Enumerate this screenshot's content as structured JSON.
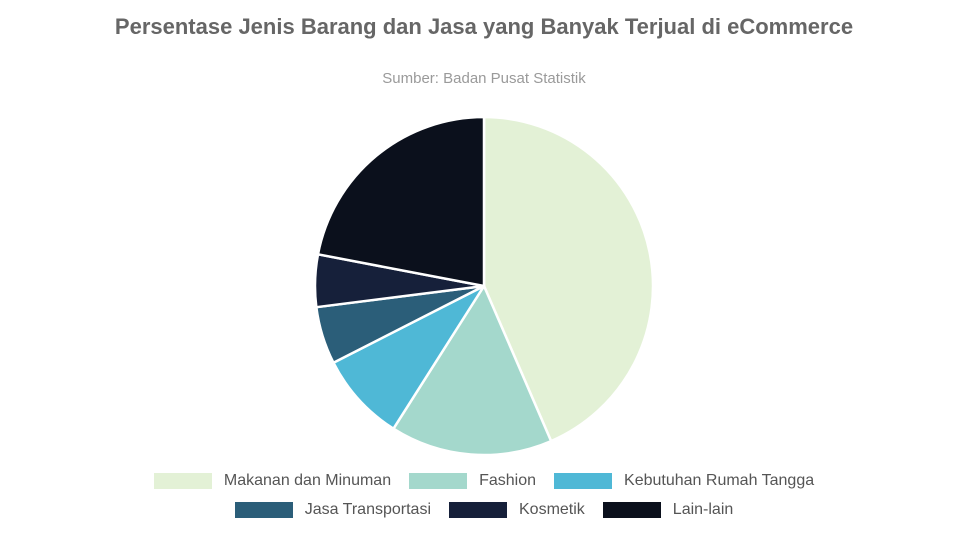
{
  "chart_data": {
    "type": "pie",
    "title": "Persentase Jenis Barang dan Jasa yang Banyak Terjual di eCommerce",
    "subtitle": "Sumber: Badan Pusat Statistik",
    "series": [
      {
        "name": "Makanan dan Minuman",
        "value": 43.5,
        "color": "#e3f1d6"
      },
      {
        "name": "Fashion",
        "value": 15.5,
        "color": "#a4d8cc"
      },
      {
        "name": "Kebutuhan Rumah Tangga",
        "value": 8.5,
        "color": "#4fb8d6"
      },
      {
        "name": "Jasa Transportasi",
        "value": 5.5,
        "color": "#2b5e79"
      },
      {
        "name": "Kosmetik",
        "value": 5.0,
        "color": "#16203a"
      },
      {
        "name": "Lain-lain",
        "value": 22.0,
        "color": "#0b101c"
      }
    ],
    "legend_rows": [
      [
        0,
        1,
        2
      ],
      [
        3,
        4,
        5
      ]
    ],
    "legend_position": "bottom"
  }
}
